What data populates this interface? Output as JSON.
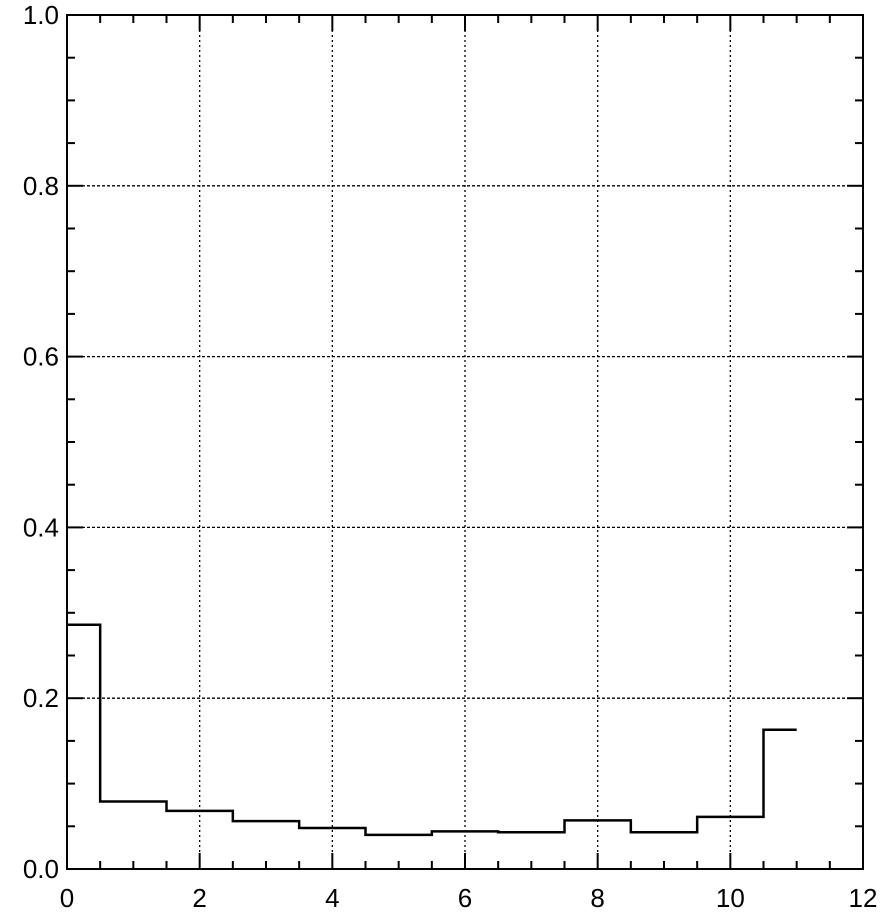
{
  "chart_data": {
    "type": "line",
    "style": "step-histogram",
    "title": "",
    "xlabel": "",
    "ylabel": "",
    "xlim": [
      0,
      12
    ],
    "ylim": [
      0,
      1.0
    ],
    "x_ticks": [
      0,
      2,
      4,
      6,
      8,
      10,
      12
    ],
    "x_tick_labels": [
      "0",
      "2",
      "4",
      "6",
      "8",
      "10",
      "12"
    ],
    "y_ticks": [
      0.0,
      0.2,
      0.4,
      0.6,
      0.8,
      1.0
    ],
    "y_tick_labels": [
      "0.0",
      "0.2",
      "0.4",
      "0.6",
      "0.8",
      "1.0"
    ],
    "x_minor_step": 0.5,
    "y_minor_step": 0.05,
    "grid": true,
    "grid_style": "dotted",
    "series": [
      {
        "color": "#000000",
        "bin_edges": [
          0,
          0.5,
          1.5,
          2.5,
          3.5,
          4.5,
          5.5,
          6.5,
          7.5,
          8.5,
          9.5,
          10.5,
          11
        ],
        "values": [
          0.286,
          0.079,
          0.068,
          0.056,
          0.048,
          0.04,
          0.044,
          0.043,
          0.057,
          0.043,
          0.061,
          0.163
        ]
      }
    ]
  }
}
